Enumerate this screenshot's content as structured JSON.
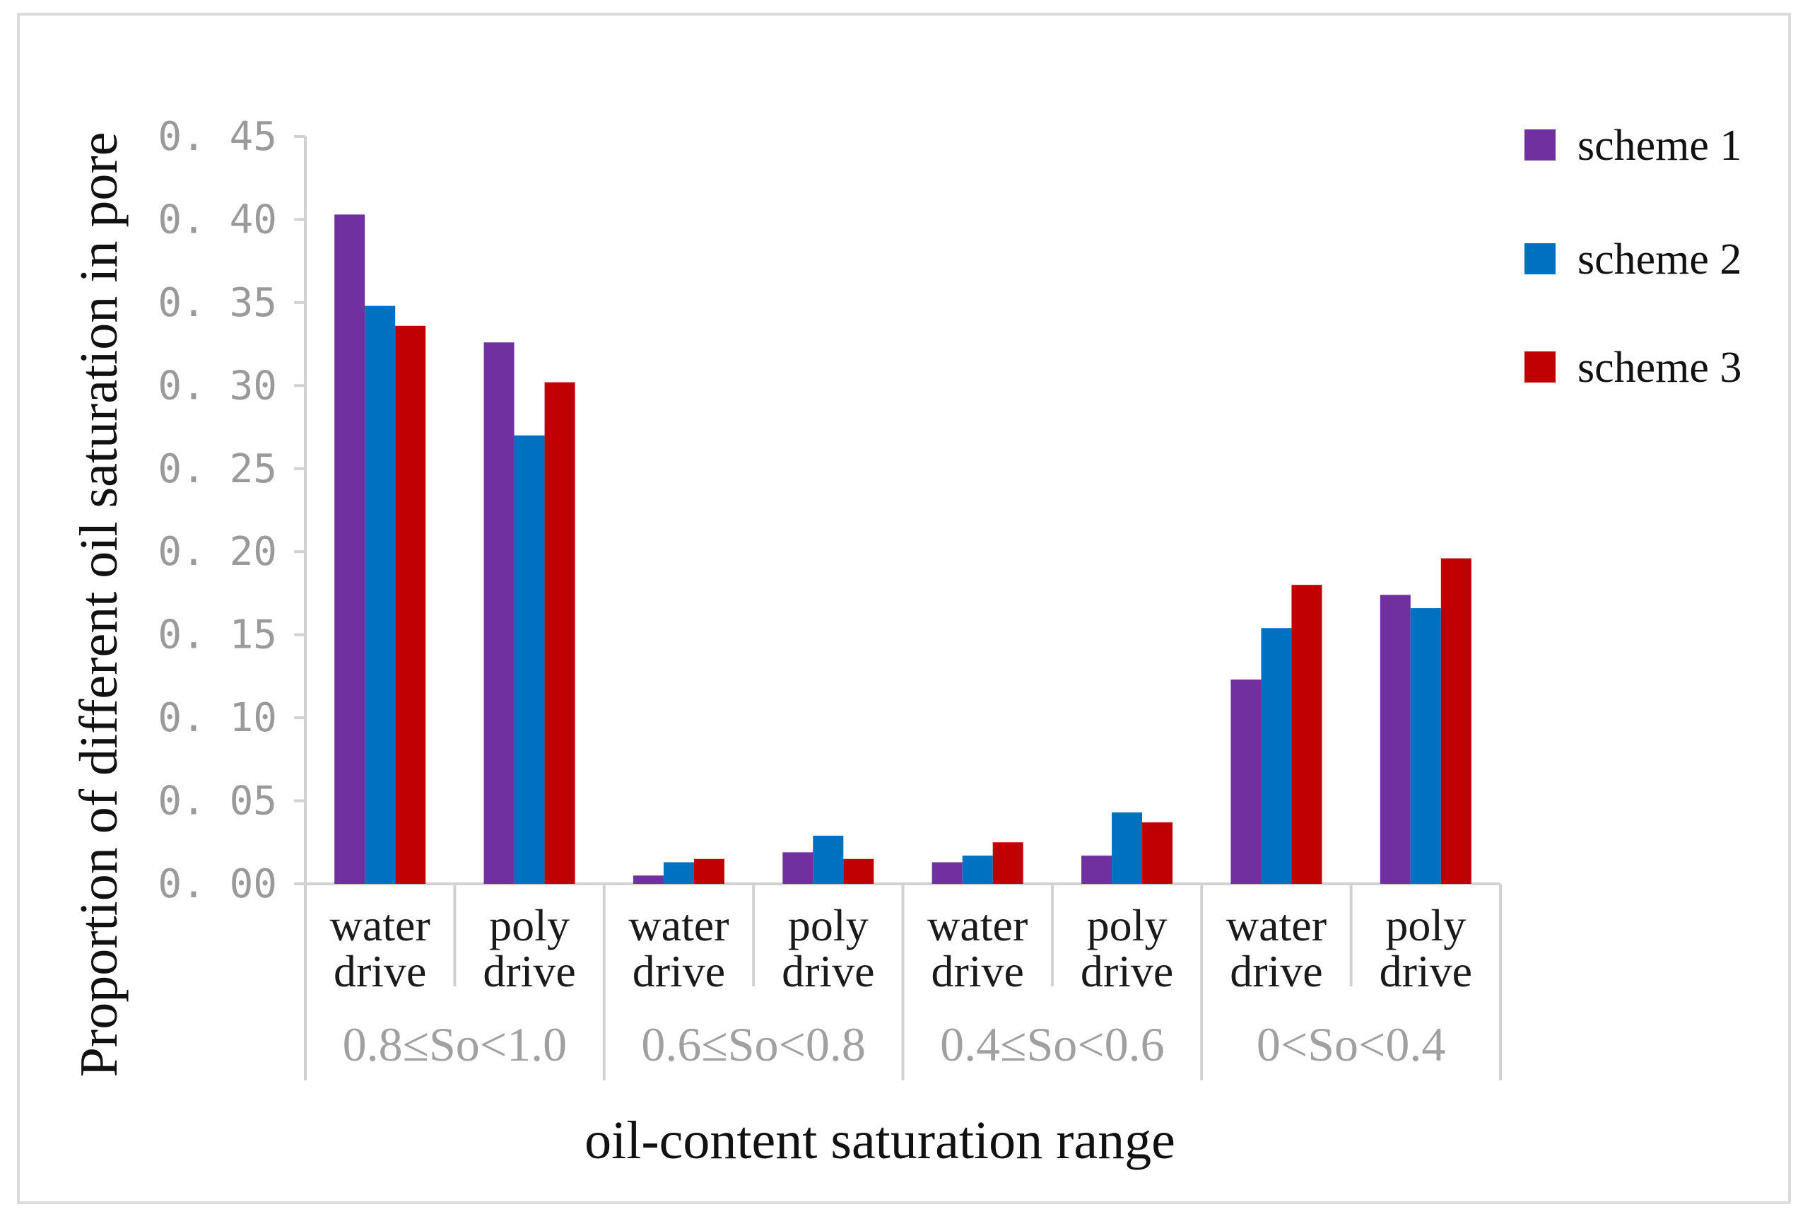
{
  "chart_data": {
    "type": "bar",
    "title": "",
    "xlabel": "oil-content saturation range",
    "ylabel": "Proportion of different oil saturation in pore",
    "ylim": [
      0,
      0.45
    ],
    "yticks": [
      "0. 00",
      "0. 05",
      "0. 10",
      "0. 15",
      "0. 20",
      "0. 25",
      "0. 30",
      "0. 35",
      "0. 40",
      "0. 45"
    ],
    "categories": [
      {
        "line1": "water",
        "line2": "drive"
      },
      {
        "line1": "poly",
        "line2": "drive"
      },
      {
        "line1": "water",
        "line2": "drive"
      },
      {
        "line1": "poly",
        "line2": "drive"
      },
      {
        "line1": "water",
        "line2": "drive"
      },
      {
        "line1": "poly",
        "line2": "drive"
      },
      {
        "line1": "water",
        "line2": "drive"
      },
      {
        "line1": "poly",
        "line2": "drive"
      }
    ],
    "groups": [
      "0.8≤So<1.0",
      "0.6≤So<0.8",
      "0.4≤So<0.6",
      "0<So<0.4"
    ],
    "series": [
      {
        "name": "scheme 1",
        "color": "#7030a0",
        "values": [
          0.403,
          0.326,
          0.005,
          0.019,
          0.013,
          0.017,
          0.123,
          0.174
        ]
      },
      {
        "name": "scheme 2",
        "color": "#0070c0",
        "values": [
          0.348,
          0.27,
          0.013,
          0.029,
          0.017,
          0.043,
          0.154,
          0.166
        ]
      },
      {
        "name": "scheme 3",
        "color": "#c00000",
        "values": [
          0.336,
          0.302,
          0.015,
          0.015,
          0.025,
          0.037,
          0.18,
          0.196
        ]
      }
    ],
    "legend_position": "top-right"
  }
}
